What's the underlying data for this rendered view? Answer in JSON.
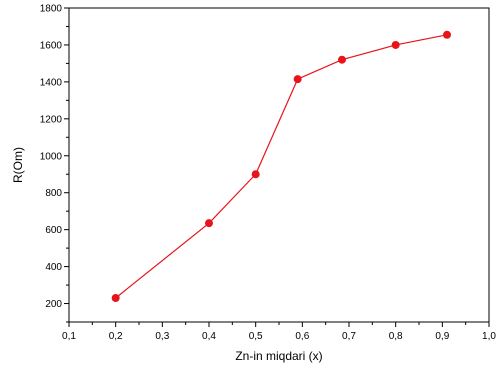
{
  "chart_data": {
    "type": "line",
    "xlabel": "Zn-in miqdari (x)",
    "ylabel": "R(Om)",
    "xlim": [
      0.1,
      1.0
    ],
    "ylim": [
      100,
      1800
    ],
    "x_ticks": [
      0.1,
      0.2,
      0.3,
      0.4,
      0.5,
      0.6,
      0.7,
      0.8,
      0.9,
      1.0
    ],
    "x_tick_labels": [
      "0,1",
      "0,2",
      "0,3",
      "0,4",
      "0,5",
      "0,6",
      "0,7",
      "0,8",
      "0,9",
      "1,0"
    ],
    "y_ticks": [
      200,
      400,
      600,
      800,
      1000,
      1200,
      1400,
      1600,
      1800
    ],
    "y_tick_labels": [
      "200",
      "400",
      "600",
      "800",
      "1000",
      "1200",
      "1400",
      "1600",
      "1800"
    ],
    "grid": false,
    "legend": "none",
    "series": [
      {
        "color": "#e8141b",
        "marker": "circle",
        "x": [
          0.2,
          0.4,
          0.5,
          0.59,
          0.685,
          0.8,
          0.91
        ],
        "y": [
          230,
          635,
          900,
          1415,
          1520,
          1600,
          1655
        ]
      }
    ]
  }
}
